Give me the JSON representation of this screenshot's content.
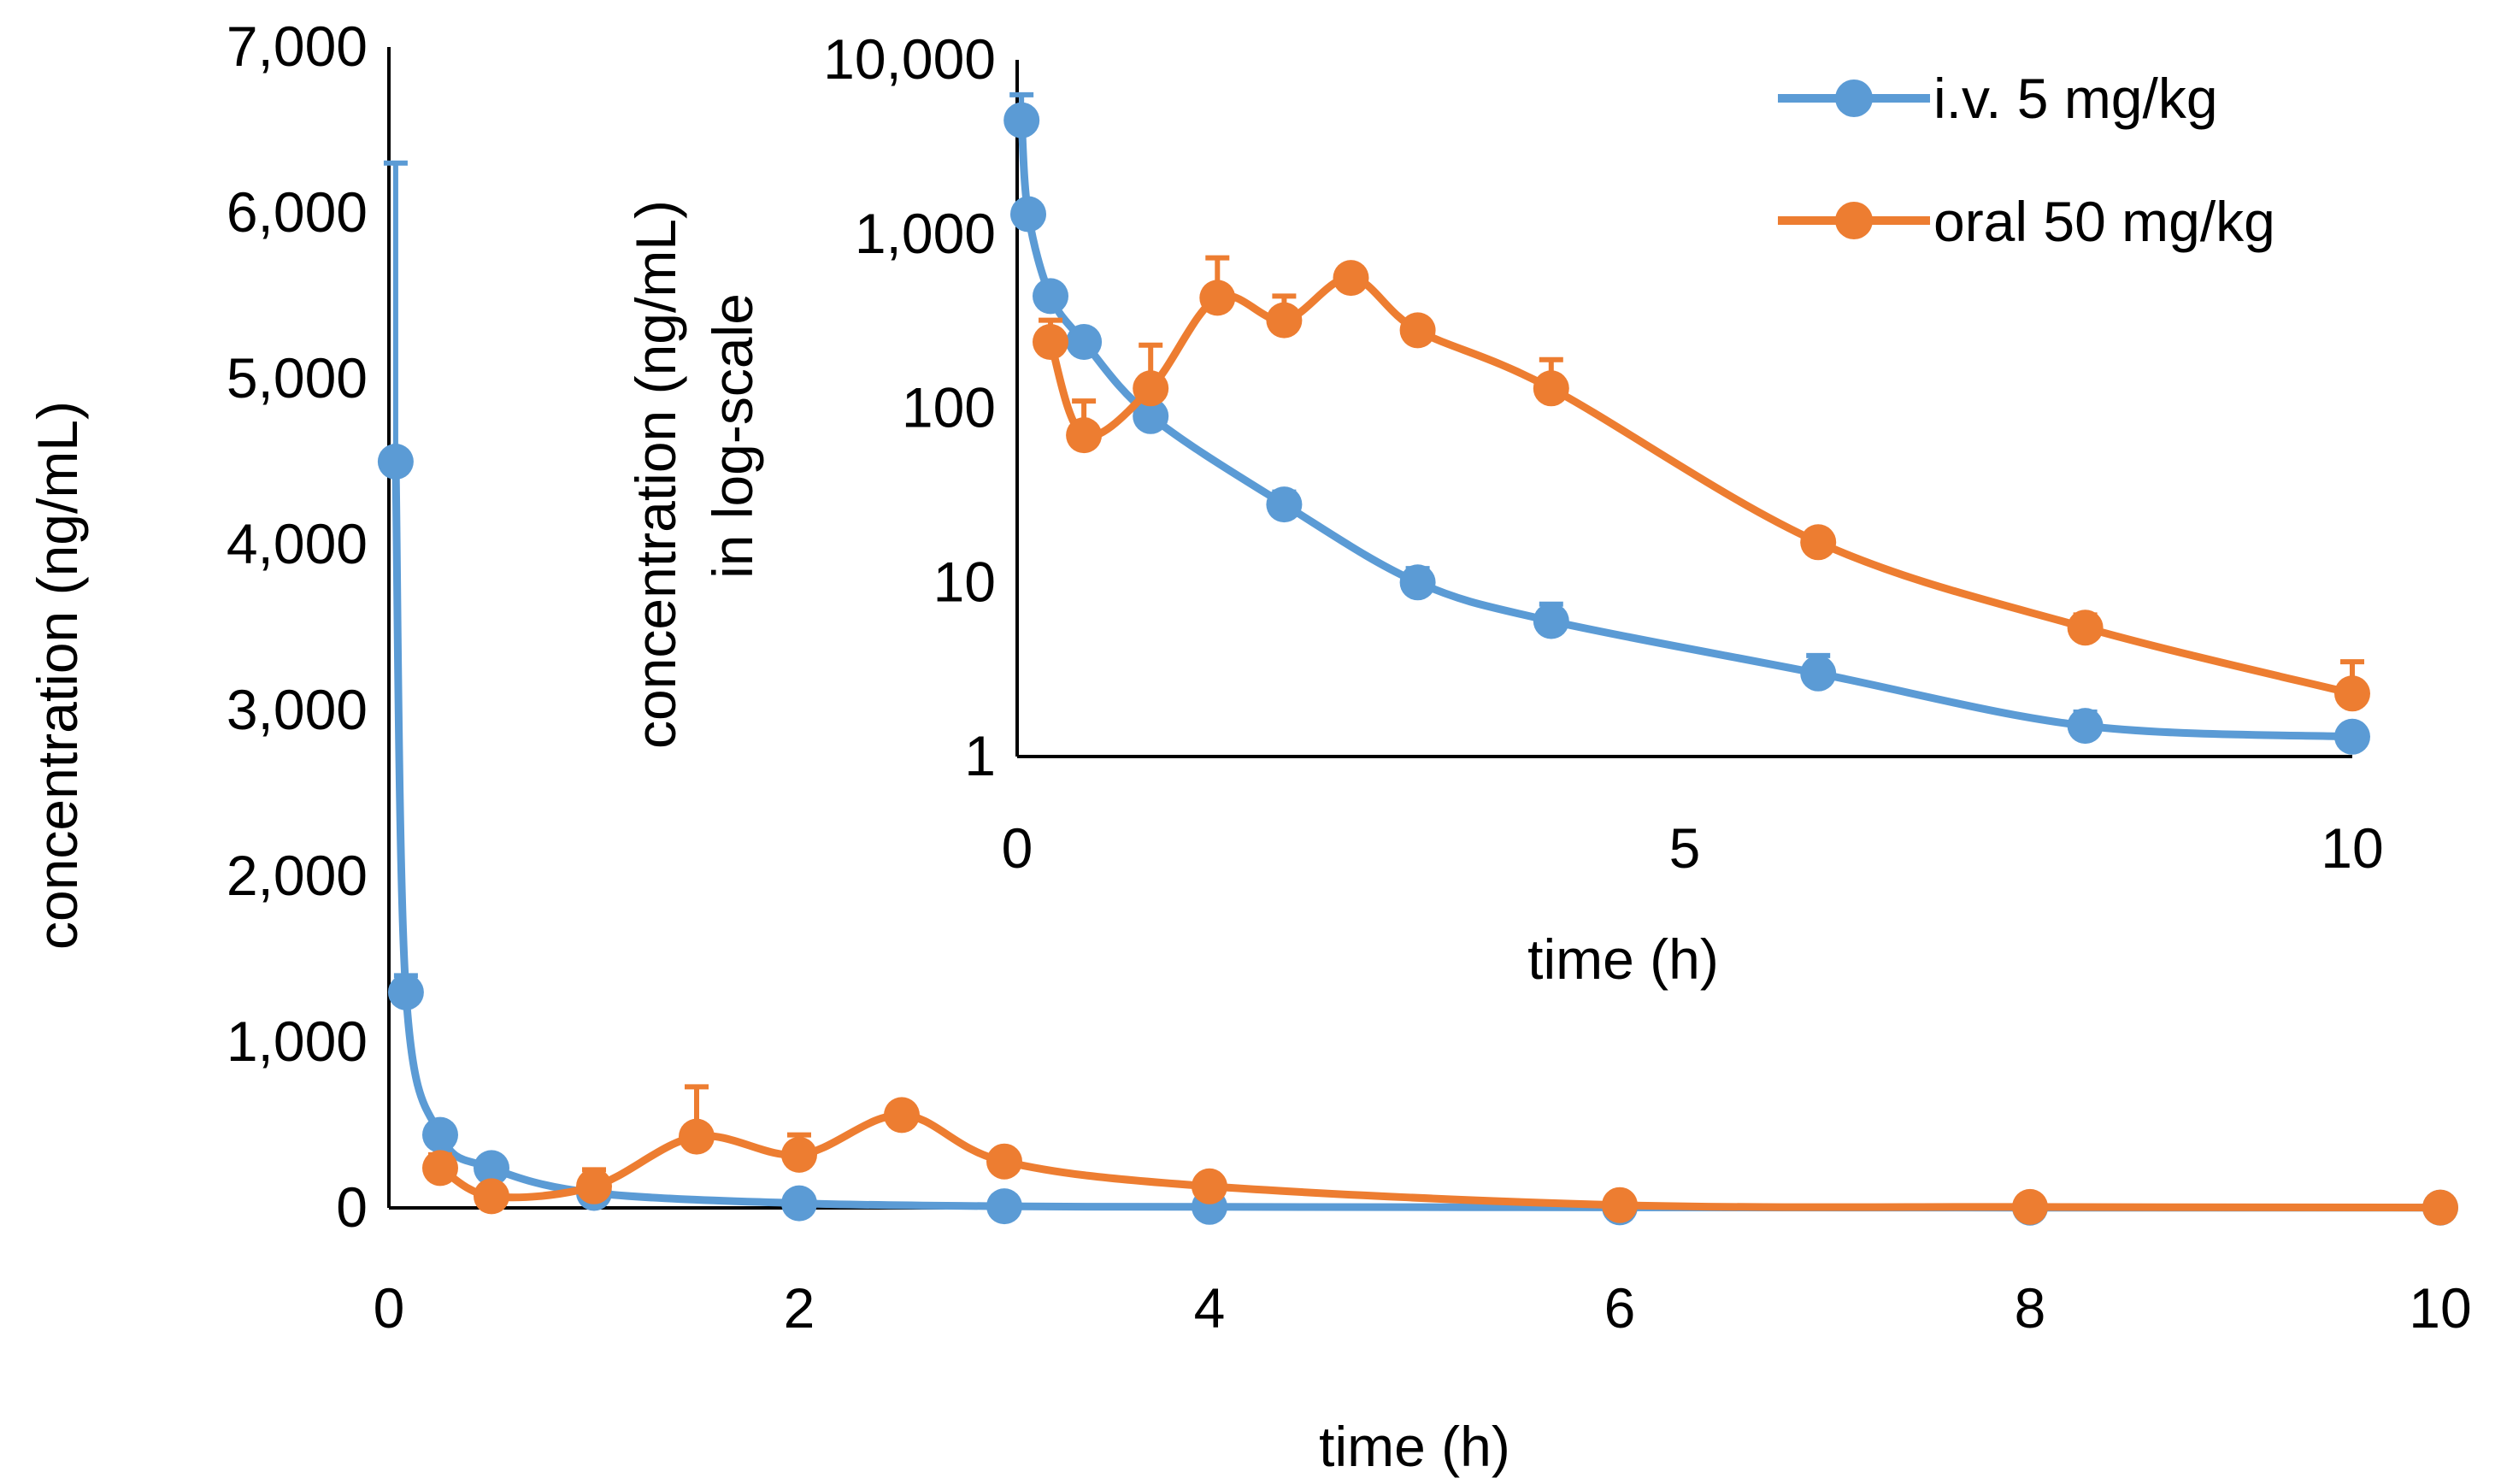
{
  "colors": {
    "iv": "#5B9BD5",
    "oral": "#ED7D31",
    "axis": "#000000"
  },
  "legend": {
    "iv_label": "i.v. 5 mg/kg",
    "oral_label": "oral 50 mg/kg"
  },
  "chart_data": [
    {
      "id": "main",
      "type": "line",
      "title": "",
      "xlabel": "time (h)",
      "ylabel": "concentration (ng/mL)",
      "xlim": [
        0,
        10
      ],
      "ylim": [
        0,
        7000
      ],
      "xticks": [
        0,
        2,
        4,
        6,
        8,
        10
      ],
      "yticks": [
        0,
        1000,
        2000,
        3000,
        4000,
        5000,
        6000,
        7000
      ],
      "xtick_labels": [
        "0",
        "2",
        "4",
        "6",
        "8",
        "10"
      ],
      "ytick_labels": [
        "0",
        "1,000",
        "2,000",
        "3,000",
        "4,000",
        "5,000",
        "6,000",
        "7,000"
      ],
      "series": [
        {
          "name": "i.v. 5 mg/kg",
          "x": [
            0.033,
            0.083,
            0.25,
            0.5,
            1,
            2,
            3,
            4,
            6,
            8,
            10
          ],
          "values": [
            4500,
            1300,
            440,
            240,
            90,
            28,
            10,
            6,
            3,
            1.5,
            1.3
          ],
          "err": [
            1800,
            100,
            60,
            30,
            10,
            5,
            2,
            1.5,
            0.8,
            0.3,
            0.2
          ]
        },
        {
          "name": "oral 50 mg/kg",
          "x": [
            0.25,
            0.5,
            1,
            1.5,
            2,
            2.5,
            3,
            4,
            6,
            8,
            10
          ],
          "values": [
            240,
            70,
            130,
            430,
            320,
            560,
            280,
            130,
            17,
            5.5,
            2.3
          ],
          "err": [
            80,
            40,
            100,
            300,
            120,
            50,
            20,
            60,
            2,
            1,
            1.2
          ]
        }
      ]
    },
    {
      "id": "inset",
      "type": "line",
      "title": "",
      "xlabel": "time (h)",
      "ylabel_line1": "concentration (ng/mL)",
      "ylabel_line2": "in log-scale",
      "yscale": "log",
      "xlim": [
        0,
        10
      ],
      "ylim": [
        1,
        10000
      ],
      "xticks": [
        0,
        5,
        10
      ],
      "yticks": [
        1,
        10,
        100,
        1000,
        10000
      ],
      "xtick_labels": [
        "0",
        "5",
        "10"
      ],
      "ytick_labels": [
        "1",
        "10",
        "100",
        "1,000",
        "10,000"
      ]
    }
  ]
}
